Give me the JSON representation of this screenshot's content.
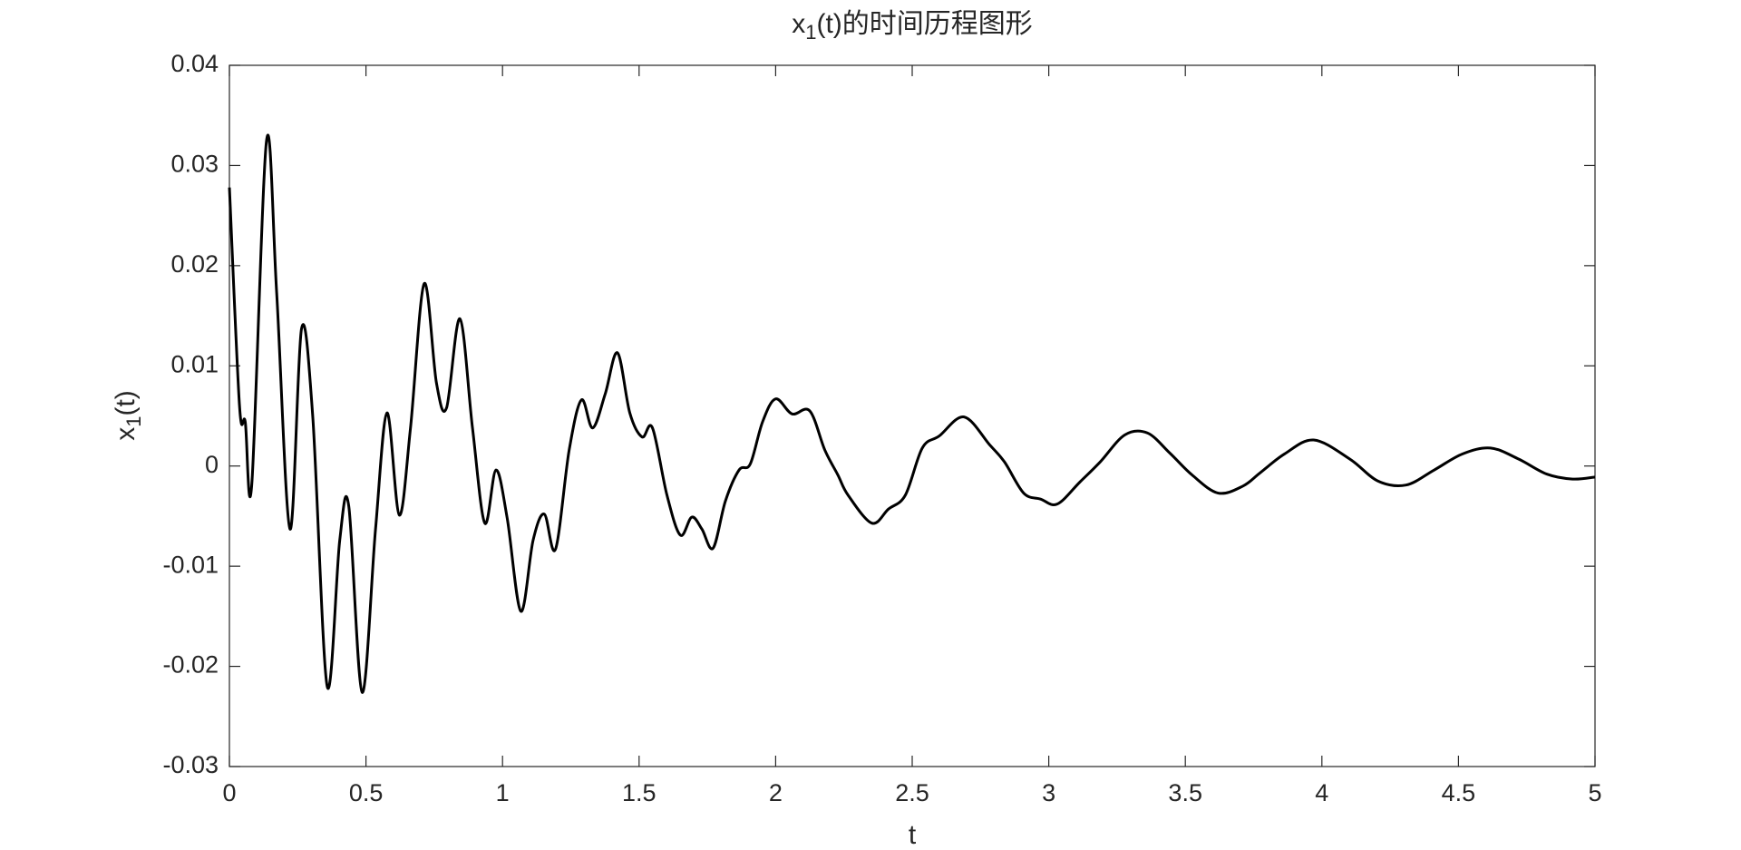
{
  "chart_data": {
    "type": "line",
    "title": {
      "base": "x",
      "subscript": "1",
      "rest": "(t)的时间历程图形"
    },
    "x_label": "t",
    "y_label": {
      "base": "x",
      "subscript": "1",
      "rest": "(t)"
    },
    "xlim": [
      0,
      5
    ],
    "ylim": [
      -0.03,
      0.04
    ],
    "xticks": [
      0,
      0.5,
      1,
      1.5,
      2,
      2.5,
      3,
      3.5,
      4,
      4.5,
      5
    ],
    "yticks": [
      -0.03,
      -0.02,
      -0.01,
      0,
      0.01,
      0.02,
      0.03,
      0.04
    ],
    "grid": false,
    "series": [
      {
        "color": "#000000",
        "x": [
          0,
          0.037,
          0.058,
          0.082,
          0.136,
          0.173,
          0.222,
          0.264,
          0.305,
          0.358,
          0.404,
          0.437,
          0.486,
          0.535,
          0.577,
          0.622,
          0.663,
          0.713,
          0.758,
          0.795,
          0.844,
          0.89,
          0.935,
          0.976,
          1.017,
          1.067,
          1.112,
          1.153,
          1.194,
          1.244,
          1.289,
          1.33,
          1.376,
          1.421,
          1.466,
          1.511,
          1.549,
          1.602,
          1.651,
          1.693,
          1.73,
          1.771,
          1.816,
          1.866,
          1.907,
          1.952,
          2.0,
          2.06,
          2.125,
          2.18,
          2.228,
          2.265,
          2.352,
          2.413,
          2.475,
          2.537,
          2.599,
          2.69,
          2.784,
          2.838,
          2.908,
          2.97,
          3.031,
          3.114,
          3.188,
          3.278,
          3.361,
          3.443,
          3.525,
          3.62,
          3.711,
          3.773,
          3.863,
          3.97,
          4.102,
          4.205,
          4.308,
          4.411,
          4.514,
          4.617,
          4.72,
          4.823,
          4.918,
          5
        ],
        "values": [
          0.0278,
          0.006,
          0.0044,
          -0.0018,
          0.0325,
          0.0173,
          -0.0063,
          0.0137,
          0.005,
          -0.022,
          -0.0074,
          -0.004,
          -0.0226,
          -0.0063,
          0.0053,
          -0.0049,
          0.0038,
          0.0182,
          0.0083,
          0.0058,
          0.0147,
          0.0038,
          -0.0057,
          -0.0004,
          -0.0052,
          -0.0145,
          -0.0074,
          -0.0048,
          -0.0083,
          0.0016,
          0.0066,
          0.0038,
          0.0072,
          0.0113,
          0.0053,
          0.0029,
          0.0038,
          -0.0029,
          -0.0069,
          -0.0051,
          -0.0063,
          -0.0082,
          -0.0035,
          -0.0004,
          0.0002,
          0.0044,
          0.0067,
          0.0052,
          0.0055,
          0.0016,
          -0.0009,
          -0.0029,
          -0.0057,
          -0.0043,
          -0.0029,
          0.0018,
          0.003,
          0.0049,
          0.0021,
          0.0004,
          -0.0027,
          -0.0033,
          -0.0038,
          -0.0016,
          0.0004,
          0.0031,
          0.0033,
          0.0013,
          -0.0009,
          -0.0027,
          -0.002,
          -0.0007,
          0.0012,
          0.0026,
          0.0007,
          -0.0015,
          -0.0019,
          -0.0004,
          0.0012,
          0.0018,
          0.0007,
          -0.0008,
          -0.0013,
          -0.0011
        ]
      }
    ]
  }
}
